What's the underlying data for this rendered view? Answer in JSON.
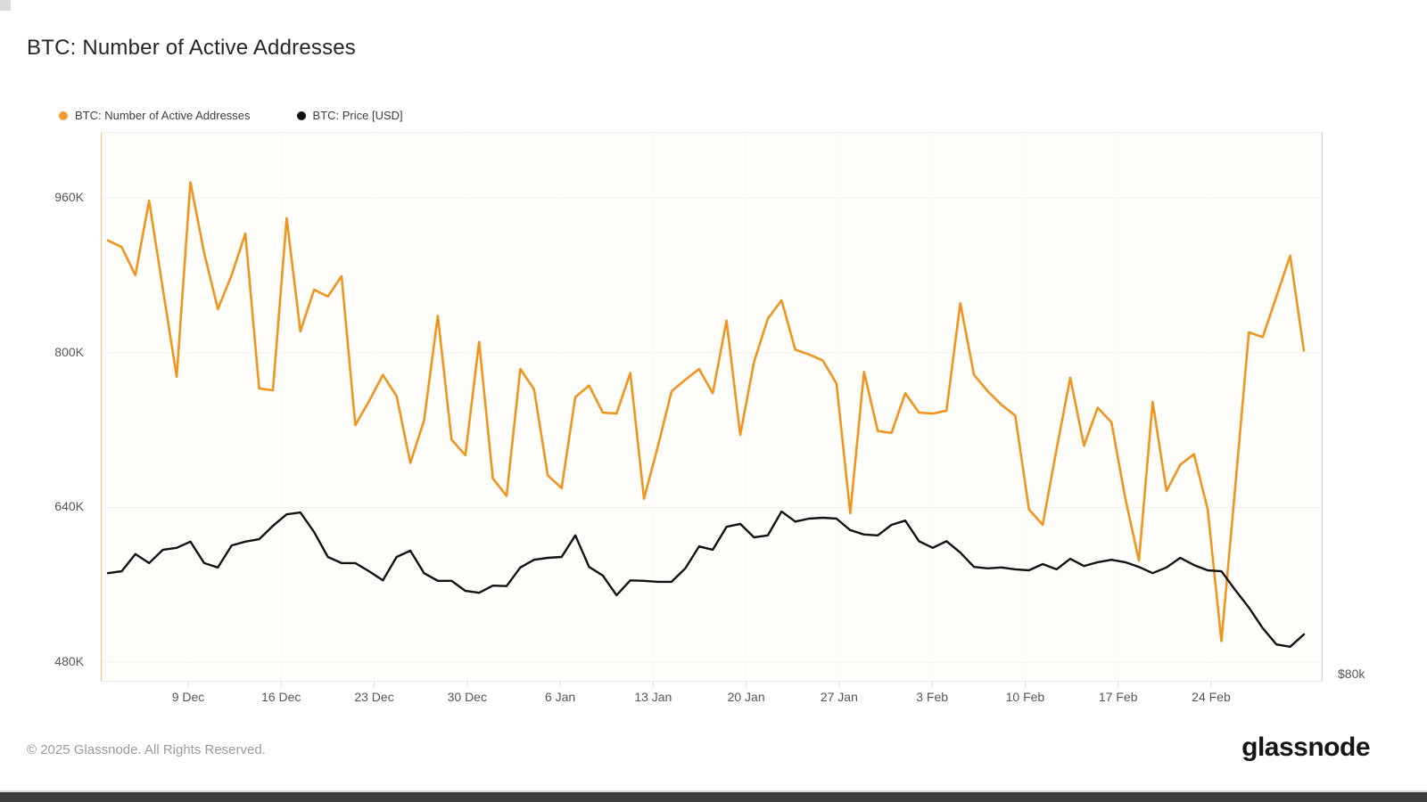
{
  "header": {
    "title": "BTC: Number of Active Addresses"
  },
  "legend": {
    "items": [
      {
        "label": "BTC: Number of Active Addresses",
        "color": "#F09A2F"
      },
      {
        "label": "BTC: Price [USD]",
        "color": "#111111"
      }
    ]
  },
  "chart_data": {
    "type": "line",
    "title": "BTC: Number of Active Addresses",
    "grid": "horizontal-faint",
    "legend_position": "top-left",
    "x_tick_labels": [
      "9 Dec",
      "16 Dec",
      "23 Dec",
      "30 Dec",
      "6 Jan",
      "13 Jan",
      "20 Jan",
      "27 Jan",
      "3 Feb",
      "10 Feb",
      "17 Feb",
      "24 Feb"
    ],
    "y_left_axis": {
      "tick_labels": [
        "960K",
        "800K",
        "640K",
        "480K"
      ],
      "tick_values": [
        960000,
        800000,
        640000,
        480000
      ],
      "range_bottom_to_top": [
        460000,
        1028000
      ]
    },
    "y_right_axis": {
      "tick_labels": [
        "$80k"
      ],
      "tick_values": [
        80000
      ],
      "range_bottom_to_top": [
        70000,
        185000
      ]
    },
    "series": [
      {
        "name": "BTC: Number of Active Addresses",
        "axis": "left",
        "color": "#EF951F",
        "stroke_width": 2.6,
        "values": [
          916000,
          909000,
          880000,
          957000,
          865000,
          775000,
          976000,
          903000,
          845000,
          880000,
          923000,
          763000,
          761000,
          939000,
          822000,
          865000,
          858000,
          879000,
          725000,
          750000,
          777000,
          755000,
          686000,
          730000,
          838000,
          710000,
          694000,
          811000,
          670000,
          652000,
          783000,
          762000,
          673000,
          660000,
          754000,
          766000,
          738000,
          737000,
          779000,
          649000,
          703000,
          760000,
          772000,
          783000,
          758000,
          833000,
          715000,
          790000,
          835000,
          854000,
          803000,
          798000,
          792000,
          768000,
          634000,
          780000,
          719000,
          717000,
          758000,
          738000,
          737000,
          740000,
          851000,
          777000,
          760000,
          746000,
          735000,
          638000,
          622000,
          700000,
          774000,
          704000,
          743000,
          728000,
          650000,
          585000,
          749000,
          657000,
          684000,
          695000,
          638000,
          502000,
          660000,
          821000,
          816000,
          858000,
          900000,
          802000
        ]
      },
      {
        "name": "BTC: Price [USD]",
        "axis": "right",
        "color": "#121212",
        "stroke_width": 2.4,
        "values": [
          92700,
          93100,
          96700,
          94800,
          97600,
          98000,
          99300,
          94800,
          93900,
          98500,
          99300,
          99800,
          102600,
          105000,
          105400,
          101300,
          96100,
          94800,
          94800,
          93100,
          91200,
          96100,
          97400,
          92700,
          91100,
          91100,
          89000,
          88600,
          90100,
          90000,
          93900,
          95500,
          95900,
          96100,
          100600,
          94000,
          92200,
          88100,
          91200,
          91100,
          90900,
          90900,
          93700,
          98300,
          97600,
          102400,
          103000,
          100200,
          100600,
          105600,
          103500,
          104100,
          104300,
          104100,
          101700,
          100800,
          100600,
          102800,
          103700,
          99400,
          98000,
          99400,
          97000,
          94000,
          93700,
          93900,
          93500,
          93300,
          94600,
          93500,
          95700,
          94200,
          95000,
          95500,
          95000,
          94000,
          92700,
          93900,
          95900,
          94400,
          93300,
          93100,
          89200,
          85500,
          81200,
          77800,
          77300,
          79900
        ]
      }
    ]
  },
  "footer": {
    "copyright": "© 2025 Glassnode. All Rights Reserved.",
    "logo_text": "glassnode"
  }
}
